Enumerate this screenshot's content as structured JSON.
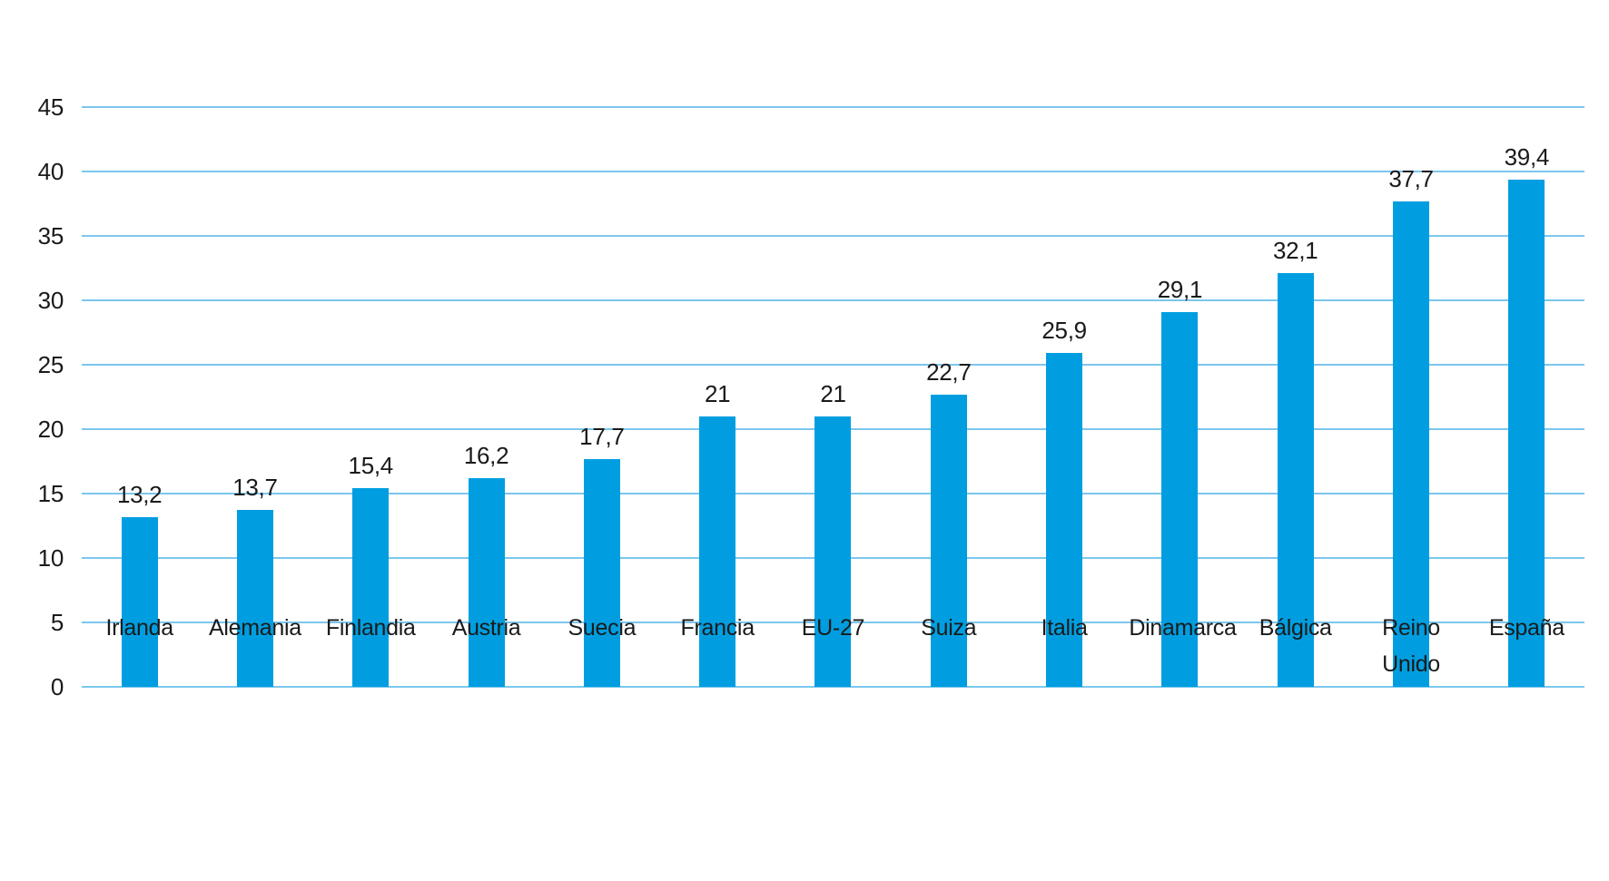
{
  "chart_data": {
    "type": "bar",
    "categories": [
      "Irlanda",
      "Alemania",
      "Finlandia",
      "Austria",
      "Suecia",
      "Francia",
      "EU-27",
      "Suiza",
      "Italia",
      "Dinamarca",
      "Bálgica",
      "Reino Unido",
      "España"
    ],
    "values": [
      13.2,
      13.7,
      15.4,
      16.2,
      17.7,
      21,
      21,
      22.7,
      25.9,
      29.1,
      32.1,
      37.7,
      39.4
    ],
    "value_labels": [
      "13,2",
      "13,7",
      "15,4",
      "16,2",
      "17,7",
      "21",
      "21",
      "22,7",
      "25,9",
      "29,1",
      "32,1",
      "37,7",
      "39,4"
    ],
    "y_tick_labels": [
      "0",
      "5",
      "10",
      "15",
      "20",
      "25",
      "30",
      "35",
      "40",
      "45"
    ],
    "ylim": [
      0,
      45
    ],
    "y_tick_step": 5,
    "grid": "horizontal-only",
    "legend": "none",
    "decimal_separator": ",",
    "colors": {
      "bar": "#009EE0",
      "gridline": "#7CC7ED",
      "text": "#1A1A1A",
      "background": "#FFFFFF"
    }
  }
}
